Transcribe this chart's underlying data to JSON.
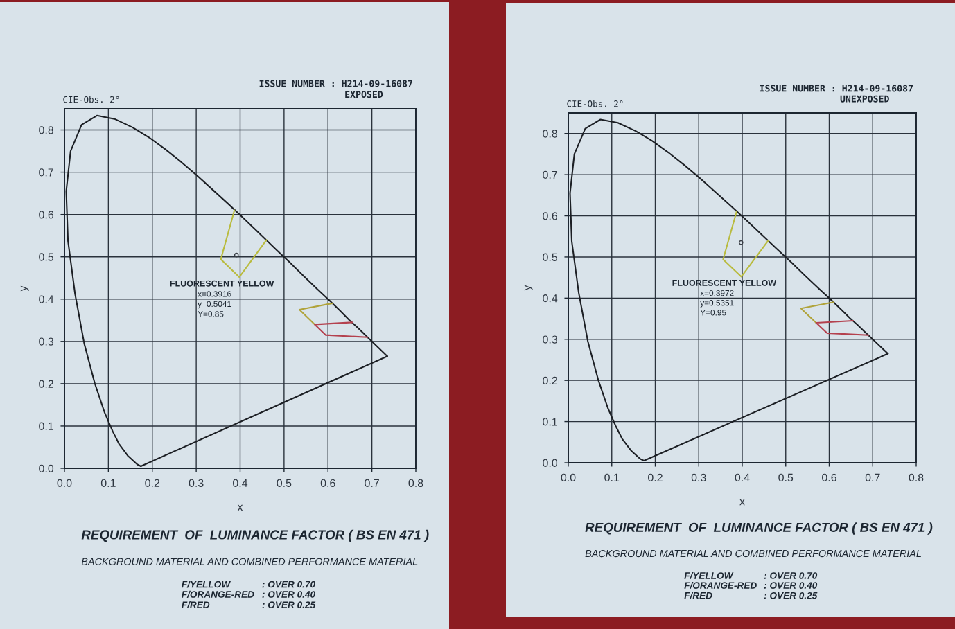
{
  "chart_data": [
    {
      "type": "line",
      "xlabel": "x",
      "ylabel": "y",
      "xlim": [
        0,
        0.8
      ],
      "ylim": [
        0,
        0.85
      ],
      "xticks": [
        {
          "value": 0,
          "label": "0.0"
        },
        0.1,
        0.2,
        0.3,
        0.4,
        0.5,
        0.6,
        0.7,
        0.8
      ],
      "yticks": [
        {
          "value": 0,
          "label": "0.0"
        },
        0.1,
        0.2,
        0.3,
        0.4,
        0.5,
        0.6,
        0.7,
        0.8
      ],
      "grid": true,
      "series": [
        {
          "color": "#1c1f24",
          "x": [
            0.174,
            0.166,
            0.144,
            0.124,
            0.11,
            0.091,
            0.069,
            0.045,
            0.024,
            0.008,
            0.004,
            0.014,
            0.039,
            0.074,
            0.114,
            0.155,
            0.193,
            0.23,
            0.266,
            0.302,
            0.337,
            0.373,
            0.409,
            0.444,
            0.479,
            0.513,
            0.545,
            0.575,
            0.603,
            0.627,
            0.648,
            0.666,
            0.68,
            0.692,
            0.735
          ],
          "values": [
            0.005,
            0.009,
            0.03,
            0.058,
            0.087,
            0.133,
            0.201,
            0.295,
            0.413,
            0.538,
            0.655,
            0.75,
            0.812,
            0.834,
            0.826,
            0.806,
            0.782,
            0.754,
            0.724,
            0.692,
            0.659,
            0.625,
            0.59,
            0.555,
            0.52,
            0.487,
            0.454,
            0.424,
            0.397,
            0.373,
            0.351,
            0.334,
            0.32,
            0.308,
            0.265
          ]
        },
        {
          "color": "#1c1f24",
          "x": [
            0.735,
            0.174
          ],
          "values": [
            0.265,
            0.005
          ]
        },
        {
          "color": "#b9bb3e",
          "x": [
            0.387,
            0.356,
            0.398,
            0.46
          ],
          "values": [
            0.61,
            0.494,
            0.452,
            0.54
          ]
        },
        {
          "color": "#b0a33a",
          "x": [
            0.61,
            0.535,
            0.57
          ],
          "values": [
            0.39,
            0.375,
            0.34
          ]
        },
        {
          "color": "#b4414e",
          "x": [
            0.655,
            0.57,
            0.595,
            0.69
          ],
          "values": [
            0.345,
            0.34,
            0.315,
            0.31
          ]
        },
        {
          "type": "scatter",
          "color": "#3a3f46",
          "marker": "circle",
          "x": [
            0.3916
          ],
          "values": [
            0.5041
          ]
        }
      ],
      "annotations": [
        "CIE-Obs. 2°",
        "ISSUE NUMBER : H214-09-16087",
        "EXPOSED",
        "FLUORESCENT YELLOW",
        "x=0.3916",
        "y=0.5041",
        "Y=0.85",
        "REQUIREMENT  OF  LUMINANCE FACTOR ( BS EN 471 )",
        "BACKGROUND MATERIAL AND COMBINED PERFORMANCE MATERIAL",
        "F/YELLOW",
        ": OVER 0.70",
        "F/ORANGE-RED",
        ": OVER 0.40",
        "F/RED",
        ": OVER 0.25"
      ]
    },
    {
      "type": "line",
      "xlabel": "x",
      "ylabel": "y",
      "xlim": [
        0,
        0.8
      ],
      "ylim": [
        0,
        0.85
      ],
      "xticks": [
        {
          "value": 0,
          "label": "0.0"
        },
        0.1,
        0.2,
        0.3,
        0.4,
        0.5,
        0.6,
        0.7,
        0.8
      ],
      "yticks": [
        {
          "value": 0,
          "label": "0.0"
        },
        0.1,
        0.2,
        0.3,
        0.4,
        0.5,
        0.6,
        0.7,
        0.8
      ],
      "grid": true,
      "series": [
        {
          "color": "#1c1f24",
          "x": [
            0.174,
            0.166,
            0.144,
            0.124,
            0.11,
            0.091,
            0.069,
            0.045,
            0.024,
            0.008,
            0.004,
            0.014,
            0.039,
            0.074,
            0.114,
            0.155,
            0.193,
            0.23,
            0.266,
            0.302,
            0.337,
            0.373,
            0.409,
            0.444,
            0.479,
            0.513,
            0.545,
            0.575,
            0.603,
            0.627,
            0.648,
            0.666,
            0.68,
            0.692,
            0.735
          ],
          "values": [
            0.005,
            0.009,
            0.03,
            0.058,
            0.087,
            0.133,
            0.201,
            0.295,
            0.413,
            0.538,
            0.655,
            0.75,
            0.812,
            0.834,
            0.826,
            0.806,
            0.782,
            0.754,
            0.724,
            0.692,
            0.659,
            0.625,
            0.59,
            0.555,
            0.52,
            0.487,
            0.454,
            0.424,
            0.397,
            0.373,
            0.351,
            0.334,
            0.32,
            0.308,
            0.265
          ]
        },
        {
          "color": "#1c1f24",
          "x": [
            0.735,
            0.174
          ],
          "values": [
            0.265,
            0.005
          ]
        },
        {
          "color": "#b9bb3e",
          "x": [
            0.387,
            0.356,
            0.398,
            0.46
          ],
          "values": [
            0.61,
            0.494,
            0.452,
            0.54
          ]
        },
        {
          "color": "#b0a33a",
          "x": [
            0.61,
            0.535,
            0.57
          ],
          "values": [
            0.39,
            0.375,
            0.34
          ]
        },
        {
          "color": "#b4414e",
          "x": [
            0.655,
            0.57,
            0.595,
            0.69
          ],
          "values": [
            0.345,
            0.34,
            0.315,
            0.31
          ]
        },
        {
          "type": "scatter",
          "color": "#3a3f46",
          "marker": "circle",
          "x": [
            0.3972
          ],
          "values": [
            0.5351
          ]
        }
      ],
      "annotations": [
        "CIE-Obs. 2°",
        "ISSUE NUMBER : H214-09-16087",
        "UNEXPOSED",
        "FLUORESCENT YELLOW",
        "x=0.3972",
        "y=0.5351",
        "Y=0.95",
        "REQUIREMENT  OF  LUMINANCE FACTOR ( BS EN 471 )",
        "BACKGROUND MATERIAL AND COMBINED PERFORMANCE MATERIAL",
        "F/YELLOW",
        ": OVER 0.70",
        "F/ORANGE-RED",
        ": OVER 0.40",
        "F/RED",
        ": OVER 0.25"
      ]
    }
  ]
}
